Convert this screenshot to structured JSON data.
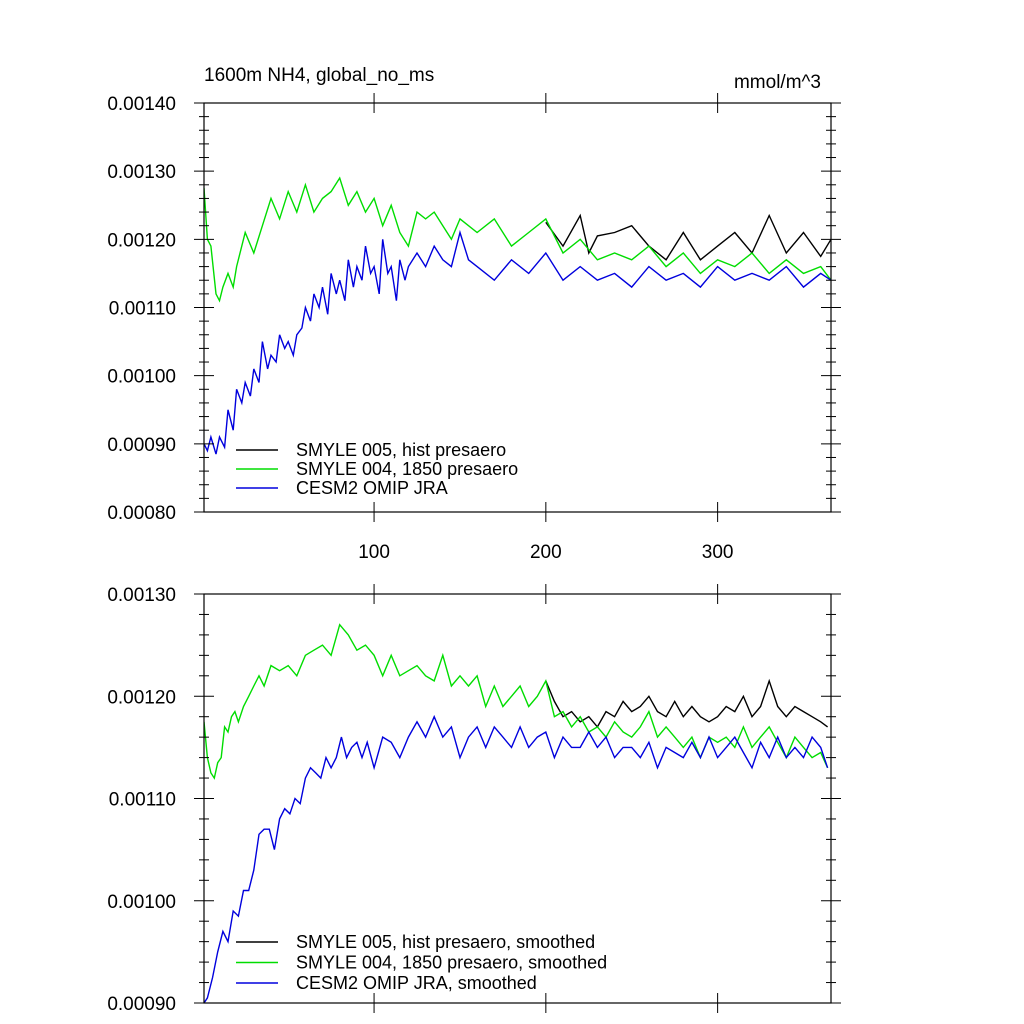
{
  "chart_data": [
    {
      "type": "line",
      "title": "1600m NH4, global_no_ms",
      "units_label": "mmol/m^3",
      "xlabel": "",
      "ylabel": "",
      "xlim": [
        1,
        366
      ],
      "ylim": [
        0.0008,
        0.0014
      ],
      "yticks": [
        "0.00080",
        "0.00090",
        "0.00100",
        "0.00110",
        "0.00120",
        "0.00130",
        "0.00140"
      ],
      "xticks": [
        "100",
        "200",
        "300"
      ],
      "grid": false,
      "legend_position": "bottom-left",
      "series": [
        {
          "name": "SMYLE 005, hist presaero",
          "color": "#000000",
          "start_day": 200,
          "x": [
            200,
            210,
            220,
            225,
            230,
            240,
            250,
            260,
            270,
            280,
            290,
            300,
            310,
            320,
            330,
            340,
            350,
            360,
            366
          ],
          "values": [
            0.001225,
            0.00119,
            0.001235,
            0.00118,
            0.001205,
            0.00121,
            0.00122,
            0.00119,
            0.00117,
            0.00121,
            0.00117,
            0.00119,
            0.00121,
            0.00118,
            0.001235,
            0.00118,
            0.00121,
            0.001175,
            0.0012
          ]
        },
        {
          "name": "SMYLE 004, 1850 presaero",
          "color": "#00dd00",
          "x": [
            1,
            3,
            5,
            8,
            10,
            12,
            15,
            18,
            20,
            25,
            30,
            35,
            40,
            45,
            50,
            55,
            60,
            65,
            70,
            75,
            80,
            85,
            90,
            95,
            100,
            105,
            110,
            115,
            120,
            125,
            130,
            135,
            140,
            145,
            150,
            160,
            170,
            180,
            190,
            200,
            210,
            220,
            230,
            240,
            250,
            260,
            270,
            280,
            290,
            300,
            310,
            320,
            330,
            340,
            350,
            360,
            366
          ],
          "values": [
            0.001275,
            0.0012,
            0.00119,
            0.00112,
            0.00111,
            0.00113,
            0.00115,
            0.00113,
            0.00116,
            0.00121,
            0.00118,
            0.00122,
            0.00126,
            0.00123,
            0.00127,
            0.00124,
            0.00128,
            0.00124,
            0.00126,
            0.00127,
            0.00129,
            0.00125,
            0.00127,
            0.00124,
            0.00126,
            0.00122,
            0.00125,
            0.00121,
            0.00119,
            0.00124,
            0.00123,
            0.00124,
            0.00122,
            0.0012,
            0.00123,
            0.00121,
            0.00123,
            0.00119,
            0.00121,
            0.00123,
            0.00118,
            0.0012,
            0.00117,
            0.00118,
            0.00117,
            0.00119,
            0.00116,
            0.00118,
            0.00115,
            0.00117,
            0.00116,
            0.00118,
            0.00115,
            0.00117,
            0.00115,
            0.00116,
            0.00114
          ]
        },
        {
          "name": "CESM2 OMIP JRA",
          "color": "#0000dd",
          "x": [
            1,
            3,
            5,
            8,
            10,
            13,
            15,
            18,
            20,
            23,
            25,
            28,
            30,
            33,
            35,
            38,
            40,
            43,
            45,
            48,
            50,
            53,
            55,
            58,
            60,
            63,
            65,
            68,
            70,
            73,
            75,
            78,
            80,
            83,
            85,
            88,
            90,
            93,
            95,
            98,
            100,
            103,
            105,
            108,
            110,
            113,
            115,
            118,
            120,
            125,
            130,
            135,
            140,
            145,
            150,
            155,
            160,
            170,
            180,
            190,
            200,
            210,
            220,
            230,
            240,
            250,
            260,
            270,
            280,
            290,
            300,
            310,
            320,
            330,
            340,
            350,
            360,
            366
          ],
          "values": [
            0.0009,
            0.00089,
            0.00091,
            0.000885,
            0.00091,
            0.000895,
            0.00095,
            0.00092,
            0.00098,
            0.00096,
            0.00099,
            0.00097,
            0.00101,
            0.00099,
            0.00105,
            0.00101,
            0.00103,
            0.00102,
            0.00106,
            0.00104,
            0.00105,
            0.00103,
            0.00106,
            0.00107,
            0.0011,
            0.00108,
            0.00112,
            0.0011,
            0.00113,
            0.00109,
            0.00115,
            0.00112,
            0.00114,
            0.00111,
            0.00117,
            0.00113,
            0.00116,
            0.00114,
            0.00119,
            0.00115,
            0.00116,
            0.00112,
            0.0012,
            0.00115,
            0.00116,
            0.00111,
            0.00117,
            0.00114,
            0.00116,
            0.00118,
            0.00116,
            0.00119,
            0.00117,
            0.00116,
            0.00121,
            0.00117,
            0.00116,
            0.00114,
            0.00117,
            0.00115,
            0.00118,
            0.00114,
            0.00116,
            0.00114,
            0.00115,
            0.00113,
            0.00116,
            0.00114,
            0.00115,
            0.00113,
            0.00116,
            0.00114,
            0.00115,
            0.00114,
            0.00116,
            0.00113,
            0.00115,
            0.00114
          ]
        }
      ]
    },
    {
      "type": "line",
      "title": "",
      "xlabel": "",
      "ylabel": "",
      "xlim": [
        1,
        366
      ],
      "ylim": [
        0.0009,
        0.0013
      ],
      "yticks": [
        "0.00090",
        "0.00100",
        "0.00110",
        "0.00120",
        "0.00130"
      ],
      "grid": false,
      "legend_position": "bottom-left",
      "series": [
        {
          "name": "SMYLE 005, hist presaero, smoothed",
          "color": "#000000",
          "x": [
            200,
            205,
            210,
            215,
            220,
            225,
            230,
            235,
            240,
            245,
            250,
            255,
            260,
            265,
            270,
            275,
            280,
            285,
            290,
            295,
            300,
            305,
            310,
            315,
            320,
            325,
            330,
            335,
            340,
            345,
            350,
            355,
            360,
            364
          ],
          "values": [
            0.001215,
            0.001195,
            0.00118,
            0.001185,
            0.001175,
            0.00118,
            0.00117,
            0.001185,
            0.00118,
            0.001195,
            0.001185,
            0.00119,
            0.0012,
            0.001185,
            0.00118,
            0.001195,
            0.00118,
            0.00119,
            0.00118,
            0.001175,
            0.00118,
            0.00119,
            0.001185,
            0.0012,
            0.00118,
            0.00119,
            0.001215,
            0.00119,
            0.00118,
            0.00119,
            0.001185,
            0.00118,
            0.001175,
            0.00117
          ]
        },
        {
          "name": "SMYLE 004, 1850 presaero, smoothed",
          "color": "#00dd00",
          "x": [
            1,
            3,
            5,
            7,
            9,
            11,
            13,
            15,
            17,
            19,
            21,
            24,
            27,
            30,
            33,
            36,
            40,
            45,
            50,
            55,
            60,
            65,
            70,
            75,
            80,
            85,
            90,
            95,
            100,
            105,
            110,
            115,
            120,
            125,
            130,
            135,
            140,
            145,
            150,
            155,
            160,
            165,
            170,
            175,
            180,
            185,
            190,
            195,
            200,
            205,
            210,
            215,
            220,
            225,
            230,
            235,
            240,
            245,
            250,
            255,
            260,
            265,
            270,
            275,
            280,
            285,
            290,
            295,
            300,
            305,
            310,
            315,
            320,
            325,
            330,
            335,
            340,
            345,
            350,
            355,
            360,
            364
          ],
          "values": [
            0.001175,
            0.00114,
            0.001125,
            0.00112,
            0.001135,
            0.00114,
            0.00117,
            0.001165,
            0.00118,
            0.001185,
            0.001175,
            0.00119,
            0.0012,
            0.00121,
            0.00122,
            0.00121,
            0.00123,
            0.001225,
            0.00123,
            0.00122,
            0.00124,
            0.001245,
            0.00125,
            0.00124,
            0.00127,
            0.00126,
            0.001245,
            0.00125,
            0.00124,
            0.00122,
            0.00124,
            0.00122,
            0.001225,
            0.00123,
            0.00122,
            0.001215,
            0.00124,
            0.00121,
            0.00122,
            0.00121,
            0.00122,
            0.00119,
            0.00121,
            0.00119,
            0.0012,
            0.00121,
            0.00119,
            0.0012,
            0.001215,
            0.00118,
            0.001185,
            0.00117,
            0.00118,
            0.001165,
            0.00117,
            0.00116,
            0.001175,
            0.001165,
            0.00116,
            0.00117,
            0.001185,
            0.00116,
            0.00117,
            0.00116,
            0.00115,
            0.00116,
            0.00114,
            0.00116,
            0.001155,
            0.00116,
            0.00115,
            0.00117,
            0.00115,
            0.00116,
            0.00117,
            0.001155,
            0.00114,
            0.00116,
            0.00115,
            0.00114,
            0.001145,
            0.00113
          ]
        },
        {
          "name": "CESM2 OMIP JRA, smoothed",
          "color": "#0000dd",
          "x": [
            1,
            3,
            6,
            9,
            12,
            15,
            18,
            21,
            24,
            27,
            30,
            33,
            36,
            39,
            42,
            45,
            48,
            51,
            54,
            57,
            60,
            63,
            66,
            69,
            72,
            75,
            78,
            81,
            84,
            87,
            90,
            93,
            96,
            100,
            105,
            110,
            115,
            120,
            125,
            130,
            135,
            140,
            145,
            150,
            155,
            160,
            165,
            170,
            175,
            180,
            185,
            190,
            195,
            200,
            205,
            210,
            215,
            220,
            225,
            230,
            235,
            240,
            245,
            250,
            255,
            260,
            265,
            270,
            275,
            280,
            285,
            290,
            295,
            300,
            305,
            310,
            315,
            320,
            325,
            330,
            335,
            340,
            345,
            350,
            355,
            360,
            364
          ],
          "values": [
            0.0009,
            0.000905,
            0.000925,
            0.00095,
            0.00097,
            0.00096,
            0.00099,
            0.000985,
            0.00101,
            0.00101,
            0.00103,
            0.001065,
            0.00107,
            0.00107,
            0.00105,
            0.00108,
            0.00109,
            0.001085,
            0.0011,
            0.001095,
            0.00112,
            0.00113,
            0.001125,
            0.00112,
            0.00114,
            0.00113,
            0.00114,
            0.00116,
            0.00114,
            0.00115,
            0.001155,
            0.00114,
            0.001155,
            0.00113,
            0.00116,
            0.001155,
            0.00114,
            0.00116,
            0.001175,
            0.00116,
            0.00118,
            0.00116,
            0.00117,
            0.00114,
            0.00116,
            0.00117,
            0.00115,
            0.00117,
            0.00116,
            0.00115,
            0.00117,
            0.00115,
            0.00116,
            0.001165,
            0.00114,
            0.00116,
            0.00115,
            0.00115,
            0.001165,
            0.00115,
            0.00116,
            0.00114,
            0.00115,
            0.00115,
            0.00114,
            0.001155,
            0.00113,
            0.00115,
            0.001145,
            0.00114,
            0.001155,
            0.00114,
            0.00116,
            0.00114,
            0.00115,
            0.00116,
            0.001145,
            0.00113,
            0.001155,
            0.00114,
            0.00116,
            0.00114,
            0.00115,
            0.00114,
            0.00116,
            0.00115,
            0.00113
          ]
        }
      ]
    }
  ]
}
